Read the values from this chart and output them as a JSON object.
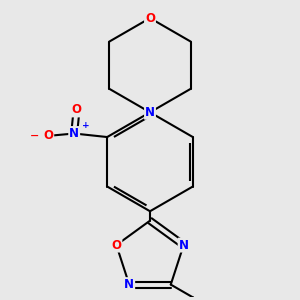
{
  "bg_color": "#e8e8e8",
  "bond_color": "#000000",
  "bond_width": 1.5,
  "atom_colors": {
    "O": "#ff0000",
    "N": "#0000ff",
    "C": "#000000"
  },
  "font_size": 8.5
}
